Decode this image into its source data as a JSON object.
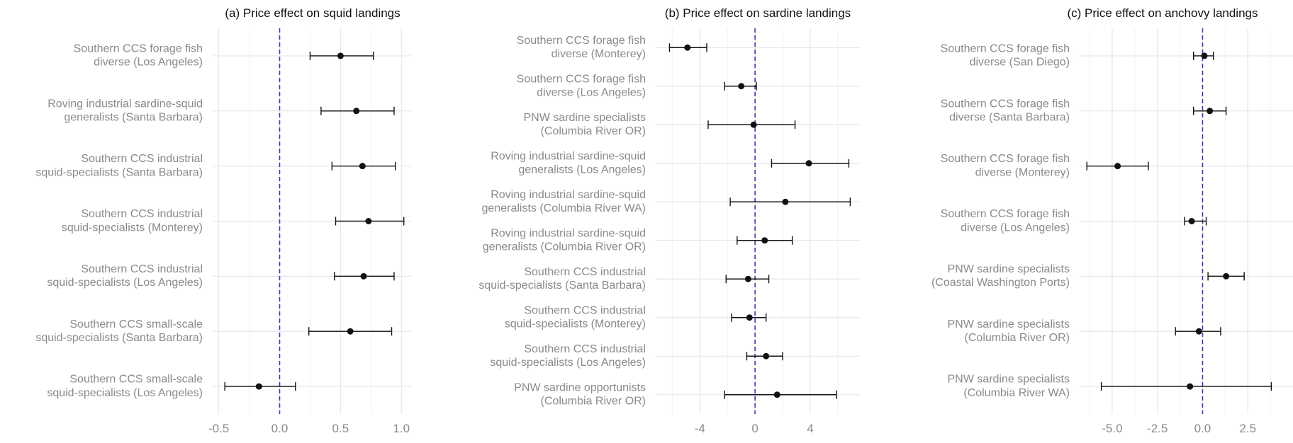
{
  "colors": {
    "point": "#111111",
    "zero_line": "#3040b0",
    "label": "#8a8a8a",
    "grid": "#e6e6ec"
  },
  "chart_data": [
    {
      "type": "scatter",
      "title": "(a) Price effect on squid landings",
      "xlim": [
        -0.55,
        1.08
      ],
      "xticks": [
        -0.5,
        0.0,
        0.5,
        1.0
      ],
      "tick_labels": [
        "-0.5",
        "0.0",
        "0.5",
        "1.0"
      ],
      "reference_line": 0,
      "categories": [
        "Southern CCS forage fish\ndiverse (Los Angeles)",
        "Roving industrial sardine-squid\ngeneralists (Santa Barbara)",
        "Southern CCS industrial\nsquid-specialists (Santa Barbara)",
        "Southern CCS industrial\nsquid-specialists (Monterey)",
        "Southern CCS industrial\nsquid-specialists (Los Angeles)",
        "Southern CCS small-scale\nsquid-specialists (Santa Barbara)",
        "Southern CCS small-scale\nsquid-specialists (Los Angeles)"
      ],
      "estimates": [
        0.5,
        0.63,
        0.68,
        0.73,
        0.69,
        0.58,
        -0.17
      ],
      "lower": [
        0.25,
        0.34,
        0.43,
        0.46,
        0.45,
        0.24,
        -0.45
      ],
      "upper": [
        0.77,
        0.94,
        0.95,
        1.02,
        0.94,
        0.92,
        0.13
      ]
    },
    {
      "type": "scatter",
      "title": "(b) Price effect on sardine landings",
      "xlim": [
        -7.2,
        7.6
      ],
      "xticks": [
        -4,
        0,
        4
      ],
      "tick_labels": [
        "-4",
        "0",
        "4"
      ],
      "reference_line": 0,
      "categories": [
        "Southern CCS forage fish\ndiverse (Monterey)",
        "Southern CCS forage fish\ndiverse (Los Angeles)",
        "PNW sardine specialists\n(Columbia River OR)",
        "Roving industrial sardine-squid\ngeneralists (Los Angeles)",
        "Roving industrial sardine-squid\ngeneralists (Columbia River WA)",
        "Roving industrial sardine-squid\ngeneralists (Columbia River OR)",
        "Southern CCS industrial\nsquid-specialists (Santa Barbara)",
        "Southern CCS industrial\nsquid-specialists (Monterey)",
        "Southern CCS industrial\nsquid-specialists (Los Angeles)",
        "PNW sardine opportunists\n(Columbia River OR)"
      ],
      "estimates": [
        -4.9,
        -1.0,
        -0.1,
        3.9,
        2.2,
        0.7,
        -0.5,
        -0.4,
        0.8,
        1.6
      ],
      "lower": [
        -6.2,
        -2.2,
        -3.4,
        1.2,
        -1.8,
        -1.3,
        -2.1,
        -1.7,
        -0.6,
        -2.2
      ],
      "upper": [
        -3.5,
        0.1,
        2.9,
        6.8,
        6.9,
        2.7,
        1.0,
        0.8,
        2.0,
        5.9
      ]
    },
    {
      "type": "scatter",
      "title": "(c) Price effect on anchovy landings",
      "xlim": [
        -6.8,
        5.0
      ],
      "xticks": [
        -5.0,
        -2.5,
        0.0,
        2.5
      ],
      "tick_labels": [
        "-5.0",
        "-2.5",
        "0.0",
        "2.5"
      ],
      "reference_line": 0,
      "categories": [
        "Southern CCS forage fish\ndiverse (San Diego)",
        "Southern CCS forage fish\ndiverse (Santa Barbara)",
        "Southern CCS forage fish\ndiverse (Monterey)",
        "Southern CCS forage fish\ndiverse (Los Angeles)",
        "PNW sardine specialists\n(Coastal Washington Ports)",
        "PNW sardine specialists\n(Columbia River OR)",
        "PNW sardine specialists\n(Columbia River WA)"
      ],
      "estimates": [
        0.1,
        0.4,
        -4.7,
        -0.6,
        1.3,
        -0.2,
        -0.7
      ],
      "lower": [
        -0.5,
        -0.5,
        -6.4,
        -1.0,
        0.3,
        -1.5,
        -5.6
      ],
      "upper": [
        0.6,
        1.3,
        -3.0,
        0.2,
        2.3,
        1.0,
        3.8
      ]
    }
  ]
}
